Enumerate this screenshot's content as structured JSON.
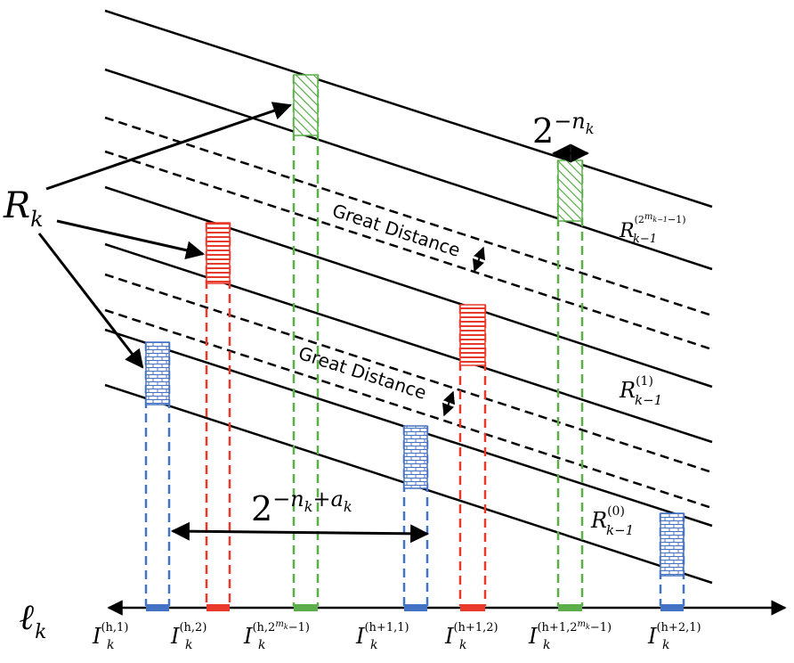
{
  "labels": {
    "rk_main": "R",
    "rk_sub": "k",
    "width_small_base": "2",
    "width_small_exp": "−n",
    "width_small_exp_sub": "k",
    "width_large_base": "2",
    "width_large_exp": "−n",
    "width_large_exp_sub": "k",
    "width_large_exp_tail": "+a",
    "width_large_exp_tail_sub": "k",
    "great_distance_top": "Great Distance",
    "great_distance_mid": "Great Distance",
    "axis_main": "ℓ",
    "axis_sub": "k",
    "rk1_top_main": "R",
    "rk1_top_sub": "k−1",
    "rk1_top_sup": "(2",
    "rk1_top_sup_m": "m",
    "rk1_top_sup_m_sub": "k−1",
    "rk1_top_sup_tail": "−1)",
    "rk1_mid_main": "R",
    "rk1_mid_sub": "k−1",
    "rk1_mid_sup": "(1)",
    "rk1_bot_main": "R",
    "rk1_bot_sub": "k−1",
    "rk1_bot_sup": "(0)"
  },
  "intervals": [
    {
      "main": "I",
      "sub": "k",
      "sup": "(h,1)",
      "color": "#4472C4"
    },
    {
      "main": "I",
      "sub": "k",
      "sup": "(h,2)",
      "color": "#E8392A"
    },
    {
      "main": "I",
      "sub": "k",
      "sup": "(h,2",
      "sup_m": "m",
      "sup_m_sub": "k",
      "sup_tail": "−1)",
      "color": "#5BAE4A"
    },
    {
      "main": "I",
      "sub": "k",
      "sup": "(h+1,1)",
      "color": "#4472C4"
    },
    {
      "main": "I",
      "sub": "k",
      "sup": "(h+1,2)",
      "color": "#E8392A"
    },
    {
      "main": "I",
      "sub": "k",
      "sup": "(h+1,2",
      "sup_m": "m",
      "sup_m_sub": "k",
      "sup_tail": "−1)",
      "color": "#5BAE4A"
    },
    {
      "main": "I",
      "sub": "k",
      "sup": "(h+2,1)",
      "color": "#4472C4"
    }
  ],
  "colors": {
    "blue": "#4472C4",
    "red": "#E8392A",
    "green": "#5BAE4A",
    "line": "#000000"
  }
}
